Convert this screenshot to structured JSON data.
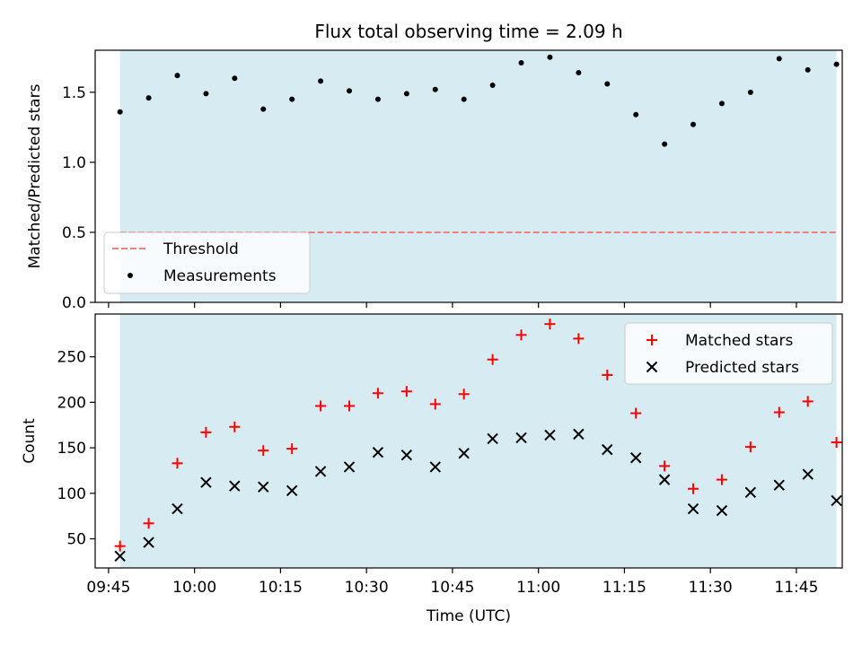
{
  "figure": {
    "title": "Flux total observing time = 2.09 h"
  },
  "chart_data": [
    {
      "type": "scatter",
      "title": "Flux total observing time = 2.09 h",
      "xlabel": "",
      "ylabel": "Matched/Predicted stars",
      "xlim": [
        "09:42:40",
        "11:53:00"
      ],
      "ylim": [
        0.0,
        1.8
      ],
      "yticks": [
        0.0,
        0.5,
        1.0,
        1.5
      ],
      "ytick_labels": [
        "0.0",
        "0.5",
        "1.0",
        "1.5"
      ],
      "shaded_region": {
        "from": "09:47:00",
        "to": "11:52:00",
        "color": "#add8e6"
      },
      "threshold": {
        "name": "Threshold",
        "value": 0.5,
        "color": "#f08080",
        "style": "dashed"
      },
      "series": [
        {
          "name": "Measurements",
          "color": "#000000",
          "marker": "dot",
          "x": [
            "09:47",
            "09:52",
            "09:57",
            "10:02",
            "10:07",
            "10:12",
            "10:17",
            "10:22",
            "10:27",
            "10:32",
            "10:37",
            "10:42",
            "10:47",
            "10:52",
            "10:57",
            "11:02",
            "11:07",
            "11:12",
            "11:17",
            "11:22",
            "11:27",
            "11:32",
            "11:37",
            "11:42",
            "11:47",
            "11:52"
          ],
          "y": [
            1.36,
            1.46,
            1.62,
            1.49,
            1.6,
            1.38,
            1.45,
            1.58,
            1.51,
            1.45,
            1.49,
            1.52,
            1.45,
            1.55,
            1.71,
            1.75,
            1.64,
            1.56,
            1.34,
            1.13,
            1.27,
            1.42,
            1.5,
            1.74,
            1.66,
            1.7
          ]
        }
      ],
      "legend": {
        "position": "lower-left"
      }
    },
    {
      "type": "scatter",
      "title": "",
      "xlabel": "Time (UTC)",
      "ylabel": "Count",
      "xlim": [
        "09:42:40",
        "11:53:00"
      ],
      "ylim": [
        18,
        297
      ],
      "yticks": [
        50,
        100,
        150,
        200,
        250
      ],
      "ytick_labels": [
        "50",
        "100",
        "150",
        "200",
        "250"
      ],
      "xticks": [
        "09:45",
        "10:00",
        "10:15",
        "10:30",
        "10:45",
        "11:00",
        "11:15",
        "11:30",
        "11:45"
      ],
      "xtick_labels": [
        "09:45",
        "10:00",
        "10:15",
        "10:30",
        "10:45",
        "11:00",
        "11:15",
        "11:30",
        "11:45"
      ],
      "shaded_region": {
        "from": "09:47:00",
        "to": "11:52:00",
        "color": "#add8e6"
      },
      "series": [
        {
          "name": "Matched stars",
          "color": "#ff0000",
          "marker": "plus",
          "x": [
            "09:47",
            "09:52",
            "09:57",
            "10:02",
            "10:07",
            "10:12",
            "10:17",
            "10:22",
            "10:27",
            "10:32",
            "10:37",
            "10:42",
            "10:47",
            "10:52",
            "10:57",
            "11:02",
            "11:07",
            "11:12",
            "11:17",
            "11:22",
            "11:27",
            "11:32",
            "11:37",
            "11:42",
            "11:47",
            "11:52"
          ],
          "y": [
            42,
            67,
            133,
            167,
            173,
            147,
            149,
            196,
            196,
            210,
            212,
            198,
            209,
            247,
            274,
            286,
            270,
            230,
            188,
            130,
            105,
            115,
            151,
            189,
            201,
            156
          ]
        },
        {
          "name": "Predicted stars",
          "color": "#000000",
          "marker": "x",
          "x": [
            "09:47",
            "09:52",
            "09:57",
            "10:02",
            "10:07",
            "10:12",
            "10:17",
            "10:22",
            "10:27",
            "10:32",
            "10:37",
            "10:42",
            "10:47",
            "10:52",
            "10:57",
            "11:02",
            "11:07",
            "11:12",
            "11:17",
            "11:22",
            "11:27",
            "11:32",
            "11:37",
            "11:42",
            "11:47",
            "11:52"
          ],
          "y": [
            31,
            46,
            83,
            112,
            108,
            107,
            103,
            124,
            129,
            145,
            142,
            129,
            144,
            160,
            161,
            164,
            165,
            148,
            139,
            115,
            83,
            81,
            101,
            109,
            121,
            92
          ]
        }
      ],
      "legend": {
        "position": "upper-right"
      }
    }
  ]
}
